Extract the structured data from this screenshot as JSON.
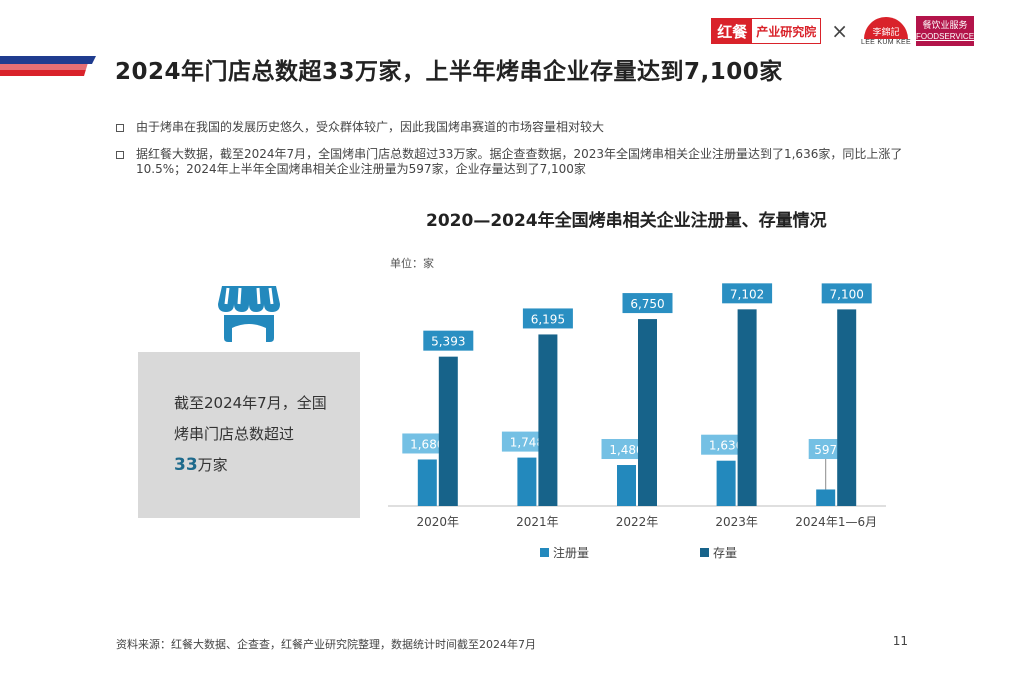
{
  "header": {
    "title": "2024年门店总数超33万家，上半年烤串企业存量达到7,100家",
    "accent_color": "#d9222a",
    "accent_color_2": "#1f3c8f"
  },
  "logos": {
    "hongcan_main": "红餐",
    "hongcan_sub": "产业研究院",
    "separator": "×",
    "lkk_text": "LEE KUM KEE",
    "lkk_mark": "李錦記",
    "fs_line1": "餐饮业服务",
    "fs_line2": "FOODSERVICE"
  },
  "bullets": [
    "由于烤串在我国的发展历史悠久，受众群体较广，因此我国烤串赛道的市场容量相对较大",
    "据红餐大数据，截至2024年7月，全国烤串门店总数超过33万家。据企查查数据，2023年全国烤串相关企业注册量达到了1,636家，同比上涨了10.5%；2024年上半年全国烤串相关企业注册量为597家，企业存量达到了7,100家"
  ],
  "info_box": {
    "text": "截至2024年7月，全国烤串门店总数超过",
    "big_number": "33",
    "unit": "万家",
    "icon": "store-icon"
  },
  "chart_data": {
    "type": "bar",
    "title": "2020—2024年全国烤串相关企业注册量、存量情况",
    "unit_label": "单位：家",
    "categories": [
      "2020年",
      "2021年",
      "2022年",
      "2023年",
      "2024年1—6月"
    ],
    "series": [
      {
        "name": "注册量",
        "color": "#2389bd",
        "label_color": "#74c0e4",
        "values": [
          1680,
          1748,
          1480,
          1636,
          597
        ],
        "labels": [
          "1,680",
          "1,748",
          "1,480",
          "1,636",
          "597"
        ]
      },
      {
        "name": "存量",
        "color": "#17638a",
        "label_color": "#2a8fc2",
        "values": [
          5393,
          6195,
          6750,
          7102,
          7100
        ],
        "labels": [
          "5,393",
          "6,195",
          "6,750",
          "7,102",
          "7,100"
        ]
      }
    ],
    "ylim": [
      0,
      7800
    ],
    "grid": false,
    "legend_position": "bottom"
  },
  "footer": {
    "source": "资料来源：红餐大数据、企查查，红餐产业研究院整理，数据统计时间截至2024年7月",
    "page_number": "11"
  }
}
